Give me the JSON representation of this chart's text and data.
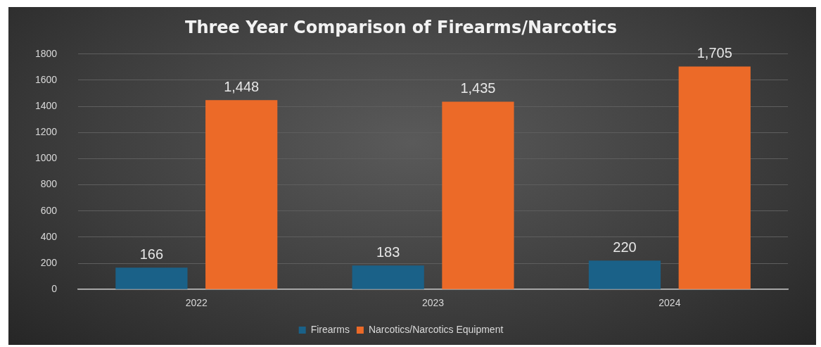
{
  "chart_data": {
    "type": "bar",
    "title": "Three Year Comparison of Firearms/Narcotics",
    "categories": [
      "2022",
      "2023",
      "2024"
    ],
    "series": [
      {
        "name": "Firearms",
        "color": "#1a6188",
        "values": [
          166,
          183,
          220
        ],
        "value_labels": [
          "166",
          "183",
          "220"
        ]
      },
      {
        "name": "Narcotics/Narcotics Equipment",
        "color": "#ec6a28",
        "values": [
          1448,
          1435,
          1705
        ],
        "value_labels": [
          "1,448",
          "1,435",
          "1,705"
        ]
      }
    ],
    "ylim": [
      0,
      1800
    ],
    "yticks": [
      0,
      200,
      400,
      600,
      800,
      1000,
      1200,
      1400,
      1600,
      1800
    ],
    "grid": "y",
    "legend": "bottom"
  }
}
